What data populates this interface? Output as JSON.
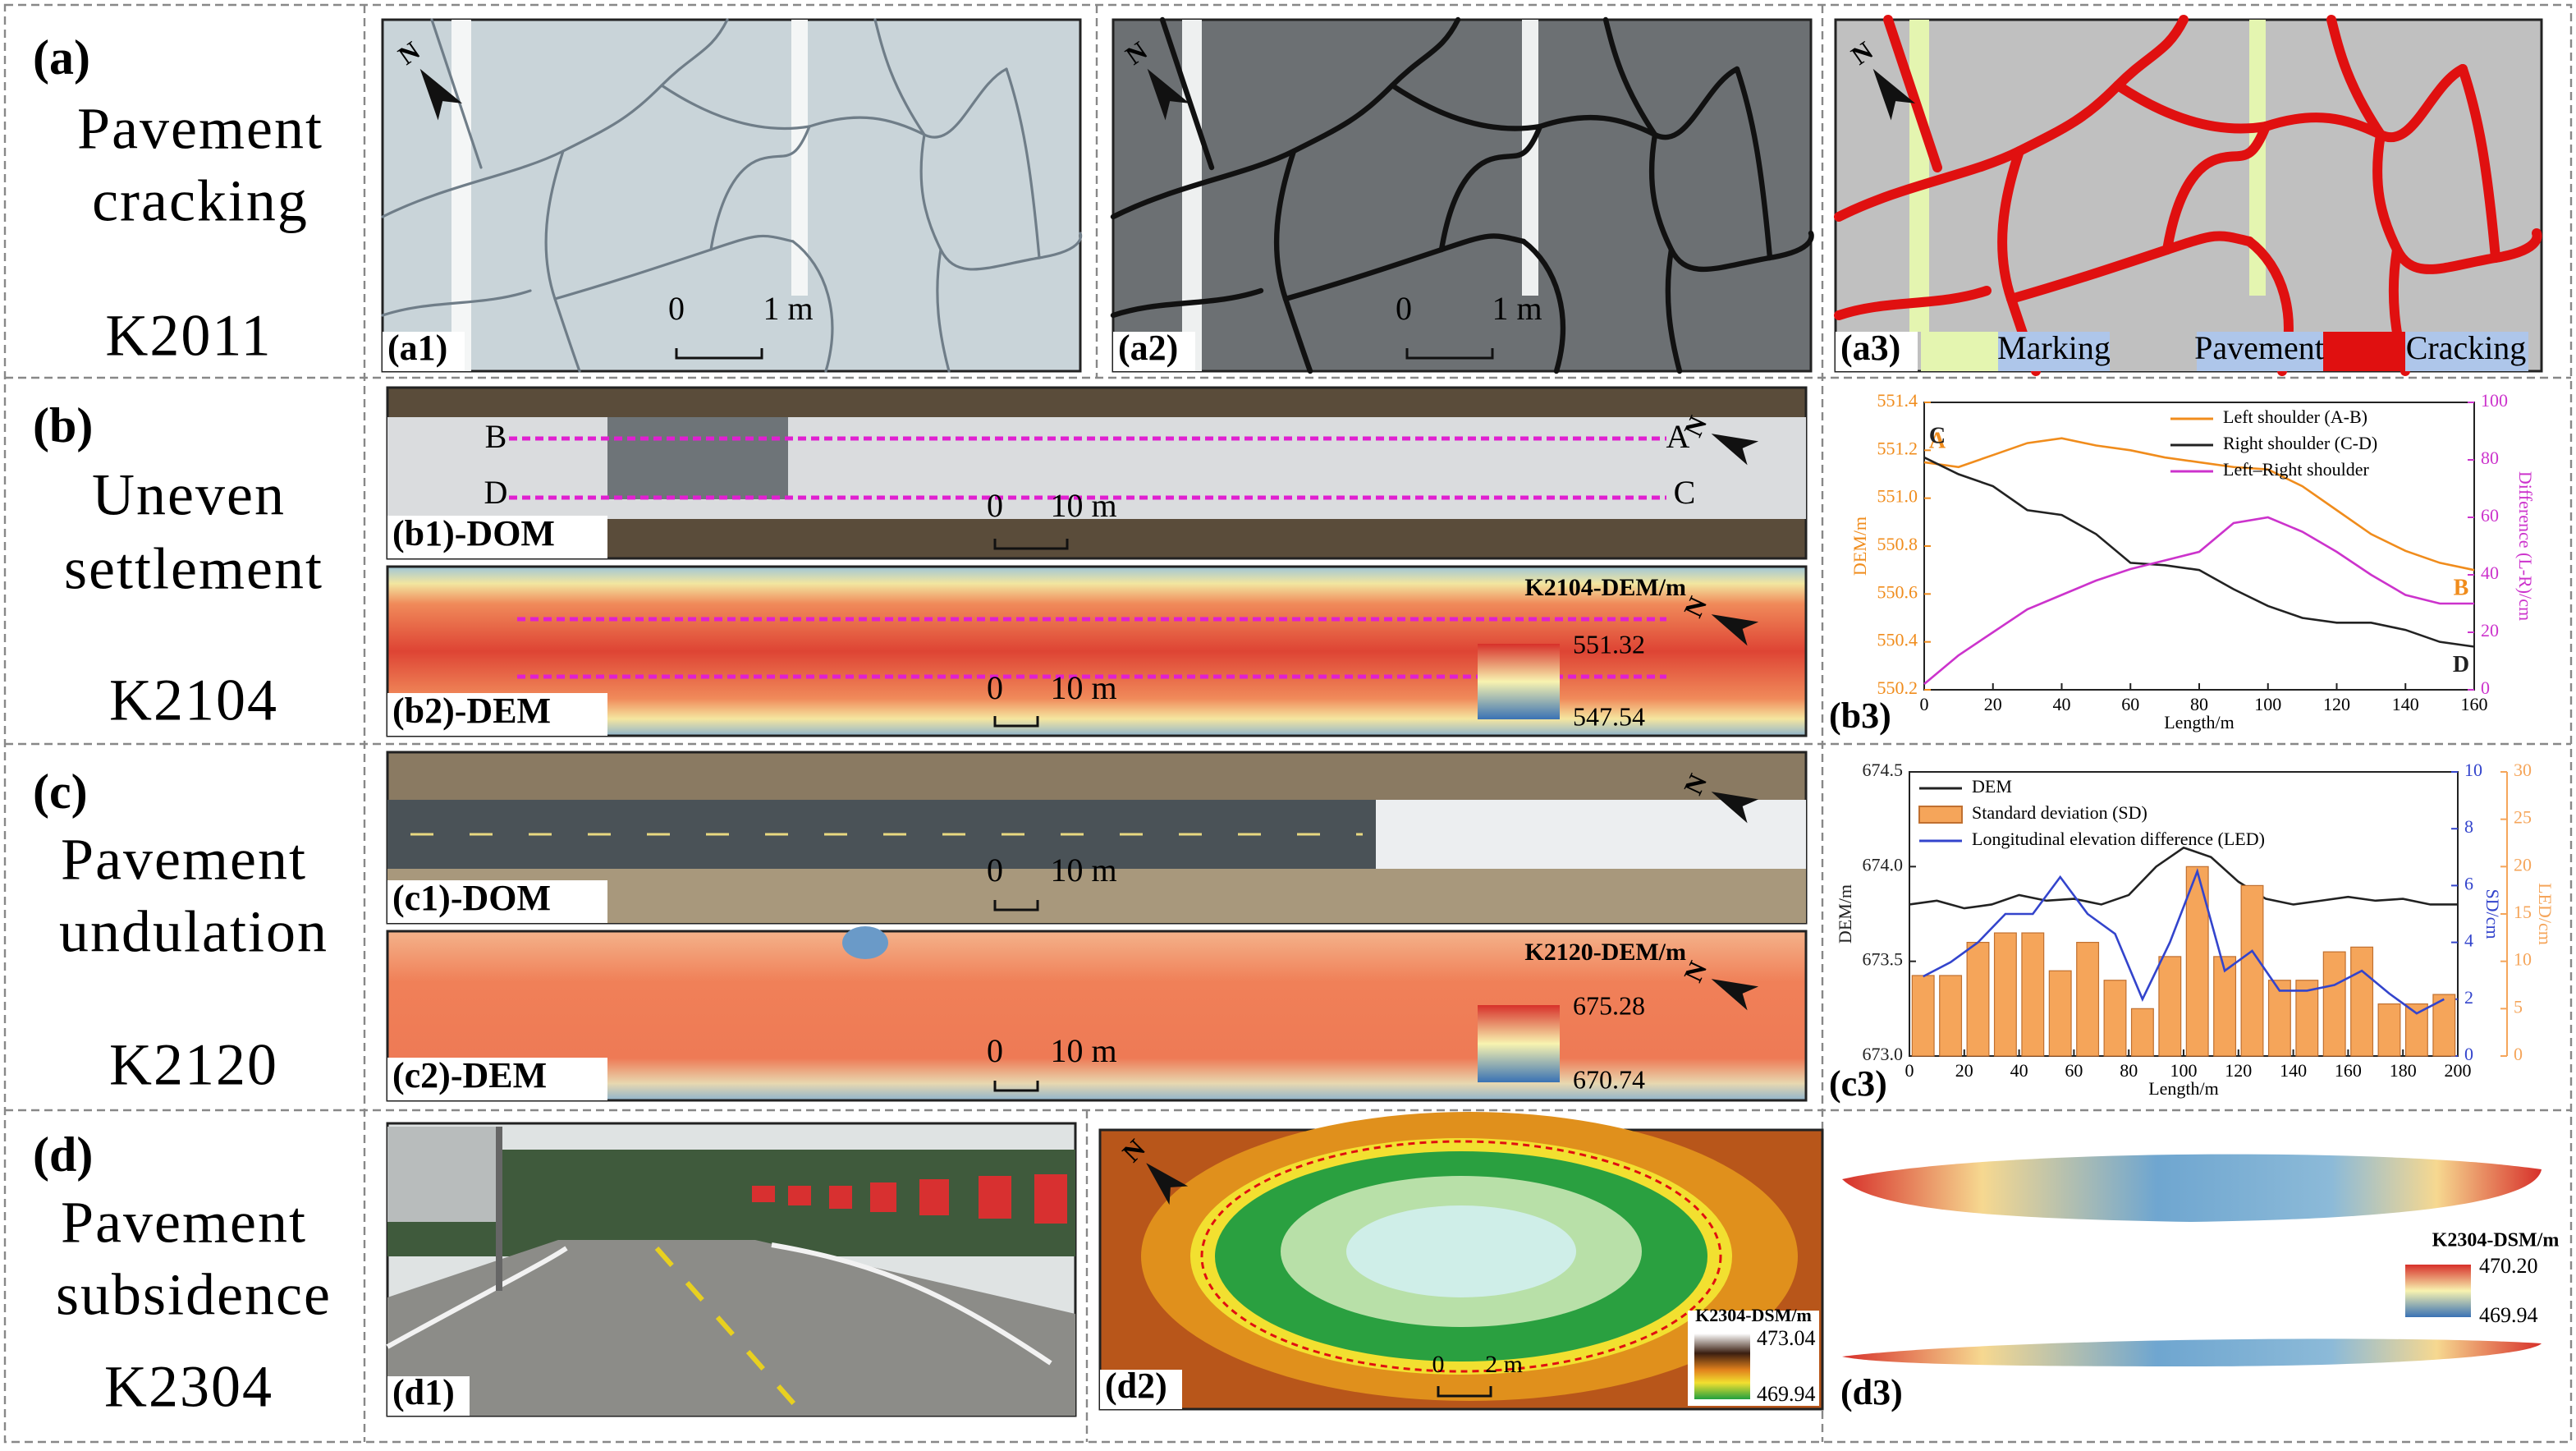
{
  "rows": [
    {
      "label": "(a)",
      "title": [
        "Pavement",
        "cracking"
      ],
      "section": "K2011"
    },
    {
      "label": "(b)",
      "title": [
        "Uneven",
        "settlement"
      ],
      "section": "K2104"
    },
    {
      "label": "(c)",
      "title": [
        "Pavement",
        "undulation"
      ],
      "section": "K2120"
    },
    {
      "label": "(d)",
      "title": [
        "Pavement",
        "subsidence"
      ],
      "section": "K2304"
    }
  ],
  "panels": {
    "a1": {
      "label": "(a1)",
      "north": "N",
      "scale": [
        "0",
        "1 m"
      ]
    },
    "a2": {
      "label": "(a2)",
      "north": "N",
      "scale": [
        "0",
        "1 m"
      ]
    },
    "a3": {
      "label": "(a3)",
      "north": "N",
      "legend": [
        "Marking",
        "Pavement",
        "Cracking"
      ]
    },
    "b1": {
      "label": "(b1)-DOM",
      "north": "N",
      "scale": [
        "0",
        "10 m"
      ],
      "points": [
        "B",
        "A",
        "D",
        "C"
      ]
    },
    "b2": {
      "label": "(b2)-DEM",
      "north": "N",
      "scale": [
        "0",
        "10 m"
      ],
      "colorbar": {
        "title": "K2104-DEM/m",
        "max": "551.32",
        "min": "547.54"
      }
    },
    "b3": {
      "label": "(b3)"
    },
    "c1": {
      "label": "(c1)-DOM",
      "north": "N",
      "scale": [
        "0",
        "10 m"
      ]
    },
    "c2": {
      "label": "(c2)-DEM",
      "north": "N",
      "scale": [
        "0",
        "10 m"
      ],
      "colorbar": {
        "title": "K2120-DEM/m",
        "max": "675.28",
        "min": "670.74"
      }
    },
    "c3": {
      "label": "(c3)"
    },
    "d1": {
      "label": "(d1)"
    },
    "d2": {
      "label": "(d2)",
      "north": "N",
      "scale": [
        "0",
        "2 m"
      ],
      "colorbar": {
        "title": "K2304-DSM/m",
        "max": "473.04",
        "min": "469.94"
      }
    },
    "d3": {
      "label": "(d3)",
      "colorbar": {
        "title": "K2304-DSM/m",
        "max": "470.20",
        "min": "469.94"
      }
    }
  },
  "chart_data": [
    {
      "type": "line",
      "xlabel": "Length/m",
      "ylabel": "DEM/m",
      "y2label": "Difference (L-R)/cm",
      "x": [
        0,
        10,
        20,
        30,
        40,
        50,
        60,
        70,
        80,
        90,
        100,
        110,
        120,
        130,
        140,
        150,
        160
      ],
      "xlim": [
        0,
        160
      ],
      "xticks": [
        0,
        20,
        40,
        60,
        80,
        100,
        120,
        140,
        160
      ],
      "ylim": [
        550.2,
        551.4
      ],
      "yticks": [
        550.2,
        550.4,
        550.6,
        550.8,
        {
          "value": 551,
          "label": "551.0"
        },
        551.2,
        551.4
      ],
      "y2lim": [
        0,
        100
      ],
      "y2ticks": [
        0,
        20,
        40,
        60,
        80,
        100
      ],
      "legend": "upper right",
      "annotations": [
        "A",
        "B",
        "C",
        "D"
      ],
      "series": [
        {
          "name": "Left shoulder (A-B)",
          "color": "#f08c1c",
          "values": [
            551.15,
            551.13,
            551.18,
            551.23,
            551.25,
            551.22,
            551.2,
            551.17,
            551.15,
            551.13,
            551.12,
            551.05,
            550.95,
            550.85,
            550.78,
            550.73,
            550.7
          ]
        },
        {
          "name": "Right shoulder (C-D)",
          "color": "#222222",
          "values": [
            551.17,
            551.1,
            551.05,
            550.95,
            550.93,
            550.85,
            550.73,
            550.72,
            550.7,
            550.62,
            550.55,
            550.5,
            550.48,
            550.48,
            550.45,
            550.4,
            550.38
          ]
        },
        {
          "name": "Left–Right shoulder",
          "color": "#cc33cc",
          "axis": "y2",
          "values": [
            2,
            12,
            20,
            28,
            33,
            38,
            42,
            45,
            48,
            58,
            60,
            55,
            48,
            40,
            33,
            30,
            30
          ]
        }
      ]
    },
    {
      "type": "combo",
      "xlabel": "Length/m",
      "ylabel": "DEM/m",
      "y2label": "SD/cm",
      "y3label": "LED/cm",
      "xlim": [
        0,
        200
      ],
      "xticks": [
        0,
        20,
        40,
        60,
        80,
        100,
        120,
        140,
        160,
        180,
        200
      ],
      "ylim": [
        673,
        674.5
      ],
      "yticks": [
        {
          "value": 673,
          "label": "673.0"
        },
        673.5,
        {
          "value": 674,
          "label": "674.0"
        },
        674.5
      ],
      "y2lim": [
        0,
        10
      ],
      "y2ticks": [
        0,
        2,
        4,
        6,
        8,
        10
      ],
      "y3lim": [
        0,
        30
      ],
      "y3ticks": [
        0,
        5,
        10,
        15,
        20,
        25,
        30
      ],
      "legend": "upper left",
      "series": [
        {
          "name": "DEM",
          "type": "line",
          "color": "#222222",
          "x": [
            0,
            10,
            20,
            30,
            40,
            50,
            60,
            70,
            80,
            90,
            100,
            110,
            120,
            130,
            140,
            150,
            160,
            170,
            180,
            190,
            200
          ],
          "values": [
            673.8,
            673.82,
            673.78,
            673.8,
            673.85,
            673.82,
            673.83,
            673.8,
            673.85,
            674.0,
            674.1,
            674.05,
            673.92,
            673.83,
            673.8,
            673.82,
            673.84,
            673.82,
            673.83,
            673.8,
            673.8
          ]
        },
        {
          "name": "Standard deviation (SD)",
          "type": "bar",
          "color": "#f5a55a",
          "axis": "y3",
          "x": [
            5,
            15,
            25,
            35,
            45,
            55,
            65,
            75,
            85,
            95,
            105,
            115,
            125,
            135,
            145,
            155,
            165,
            175,
            185,
            195
          ],
          "values": [
            8.5,
            8.5,
            12,
            13,
            13,
            9,
            12,
            8,
            5,
            10.5,
            20,
            10.5,
            18,
            8,
            8,
            11,
            11.5,
            5.5,
            5.5,
            6.5
          ]
        },
        {
          "name": "Longitudinal elevation difference (LED)",
          "type": "line",
          "color": "#3344cc",
          "axis": "y2",
          "x": [
            5,
            15,
            25,
            35,
            45,
            55,
            65,
            75,
            85,
            95,
            105,
            115,
            125,
            135,
            145,
            155,
            165,
            175,
            185,
            195
          ],
          "values": [
            2.8,
            3.3,
            4,
            5,
            5,
            6.3,
            5,
            4.3,
            2,
            4,
            6.5,
            3,
            3.7,
            2.3,
            2.3,
            2.5,
            3,
            2.2,
            1.5,
            2
          ]
        }
      ]
    }
  ]
}
